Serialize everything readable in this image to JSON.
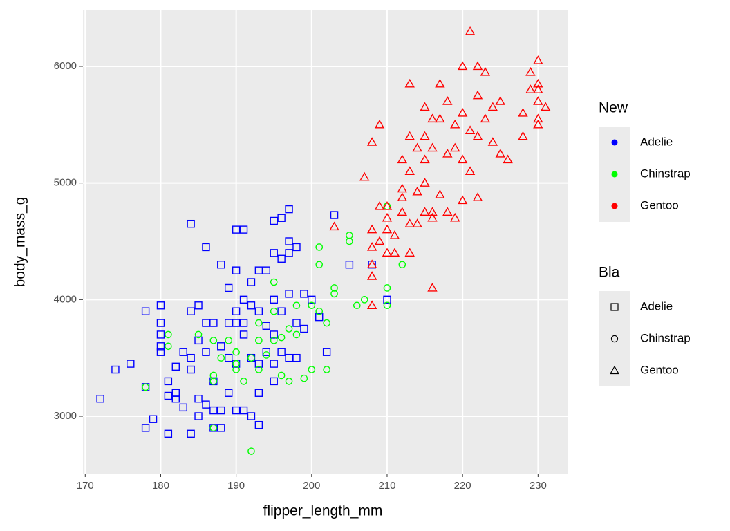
{
  "chart_data": {
    "type": "scatter",
    "x_label": "flipper_length_mm",
    "y_label": "body_mass_g",
    "xlim": [
      169.7,
      234.0
    ],
    "ylim": [
      2508,
      6480
    ],
    "xticks": [
      170,
      180,
      190,
      200,
      210,
      220,
      230
    ],
    "yticks": [
      3000,
      4000,
      5000,
      6000
    ],
    "grid": true,
    "color_legend_title": "New",
    "shape_legend_title": "Bla",
    "series": [
      {
        "name": "Adelie",
        "color": "#0000ff",
        "shape": "square",
        "x": [
          172,
          174,
          176,
          178,
          178,
          178,
          179,
          180,
          180,
          180,
          180,
          180,
          181,
          181,
          181,
          182,
          182,
          182,
          183,
          183,
          184,
          184,
          184,
          184,
          184,
          185,
          185,
          185,
          185,
          186,
          186,
          186,
          186,
          187,
          187,
          187,
          187,
          188,
          188,
          188,
          188,
          189,
          189,
          189,
          189,
          190,
          190,
          190,
          190,
          190,
          190,
          191,
          191,
          191,
          191,
          191,
          192,
          192,
          192,
          192,
          193,
          193,
          193,
          193,
          193,
          194,
          194,
          194,
          195,
          195,
          195,
          195,
          195,
          195,
          196,
          196,
          196,
          196,
          197,
          197,
          197,
          197,
          197,
          198,
          198,
          198,
          199,
          199,
          200,
          201,
          202,
          203,
          205,
          208,
          210
        ],
        "y": [
          3150,
          3400,
          3450,
          3250,
          3900,
          2900,
          2975,
          3950,
          3800,
          3700,
          3600,
          3550,
          3300,
          3175,
          2850,
          3200,
          3150,
          3425,
          3075,
          3550,
          4650,
          3900,
          3500,
          3400,
          2850,
          3950,
          3650,
          3150,
          3000,
          4450,
          3800,
          3550,
          3100,
          3800,
          3300,
          3050,
          2900,
          4300,
          3600,
          3050,
          2900,
          4100,
          3800,
          3500,
          3200,
          4600,
          4250,
          3900,
          3800,
          3450,
          3050,
          4600,
          4000,
          3700,
          3800,
          3050,
          4150,
          3950,
          3500,
          3000,
          4250,
          3900,
          3450,
          3200,
          2925,
          4250,
          3775,
          3550,
          4675,
          4400,
          4000,
          3700,
          3450,
          3300,
          4700,
          4350,
          3900,
          3550,
          4775,
          4500,
          4400,
          4050,
          3500,
          4450,
          3800,
          3500,
          4050,
          3750,
          4000,
          3850,
          3550,
          4725,
          4300,
          4300,
          4000
        ]
      },
      {
        "name": "Chinstrap",
        "color": "#00ff00",
        "shape": "circle",
        "x": [
          178,
          181,
          181,
          185,
          187,
          187,
          187,
          187,
          188,
          189,
          190,
          190,
          190,
          191,
          192,
          192,
          193,
          193,
          193,
          194,
          195,
          195,
          195,
          196,
          196,
          197,
          197,
          198,
          198,
          199,
          200,
          200,
          201,
          201,
          201,
          202,
          202,
          203,
          203,
          205,
          205,
          206,
          207,
          210,
          210,
          210,
          212
        ],
        "y": [
          3250,
          3700,
          3600,
          3700,
          3650,
          3350,
          3300,
          2900,
          3500,
          3650,
          3550,
          3450,
          3400,
          3300,
          3500,
          2700,
          3800,
          3650,
          3400,
          3525,
          3650,
          3900,
          4150,
          3675,
          3350,
          3750,
          3300,
          3950,
          3700,
          3325,
          3400,
          3950,
          4450,
          4300,
          3900,
          3400,
          3800,
          4050,
          4100,
          4550,
          4500,
          3950,
          4000,
          4800,
          4100,
          3950,
          4300
        ]
      },
      {
        "name": "Gentoo",
        "color": "#ff0000",
        "shape": "triangle",
        "x": [
          203,
          207,
          208,
          208,
          208,
          208,
          208,
          208,
          209,
          209,
          209,
          210,
          210,
          210,
          210,
          211,
          211,
          212,
          212,
          212,
          212,
          213,
          213,
          213,
          213,
          213,
          214,
          214,
          214,
          215,
          215,
          215,
          215,
          215,
          216,
          216,
          216,
          216,
          216,
          217,
          217,
          217,
          218,
          218,
          218,
          219,
          219,
          219,
          220,
          220,
          220,
          220,
          221,
          221,
          221,
          222,
          222,
          222,
          222,
          223,
          223,
          224,
          224,
          225,
          225,
          226,
          228,
          228,
          229,
          229,
          230,
          230,
          230,
          230,
          230,
          230,
          231
        ],
        "y": [
          4625,
          5050,
          5350,
          4600,
          4450,
          4300,
          4200,
          3950,
          5500,
          4800,
          4500,
          4800,
          4700,
          4600,
          4400,
          4400,
          4550,
          5200,
          4950,
          4875,
          4750,
          5850,
          5400,
          5100,
          4650,
          4400,
          5300,
          4925,
          4650,
          5650,
          5400,
          5200,
          4750,
          5000,
          5550,
          5300,
          4750,
          4700,
          4100,
          5850,
          4900,
          5550,
          5700,
          5250,
          4750,
          5500,
          5300,
          4700,
          6000,
          5600,
          5200,
          4850,
          6300,
          5450,
          5100,
          6000,
          5750,
          5400,
          4875,
          5950,
          5550,
          5650,
          5350,
          5700,
          5250,
          5200,
          5600,
          5400,
          5950,
          5800,
          6050,
          5850,
          5800,
          5700,
          5550,
          5500,
          5650
        ]
      }
    ]
  }
}
